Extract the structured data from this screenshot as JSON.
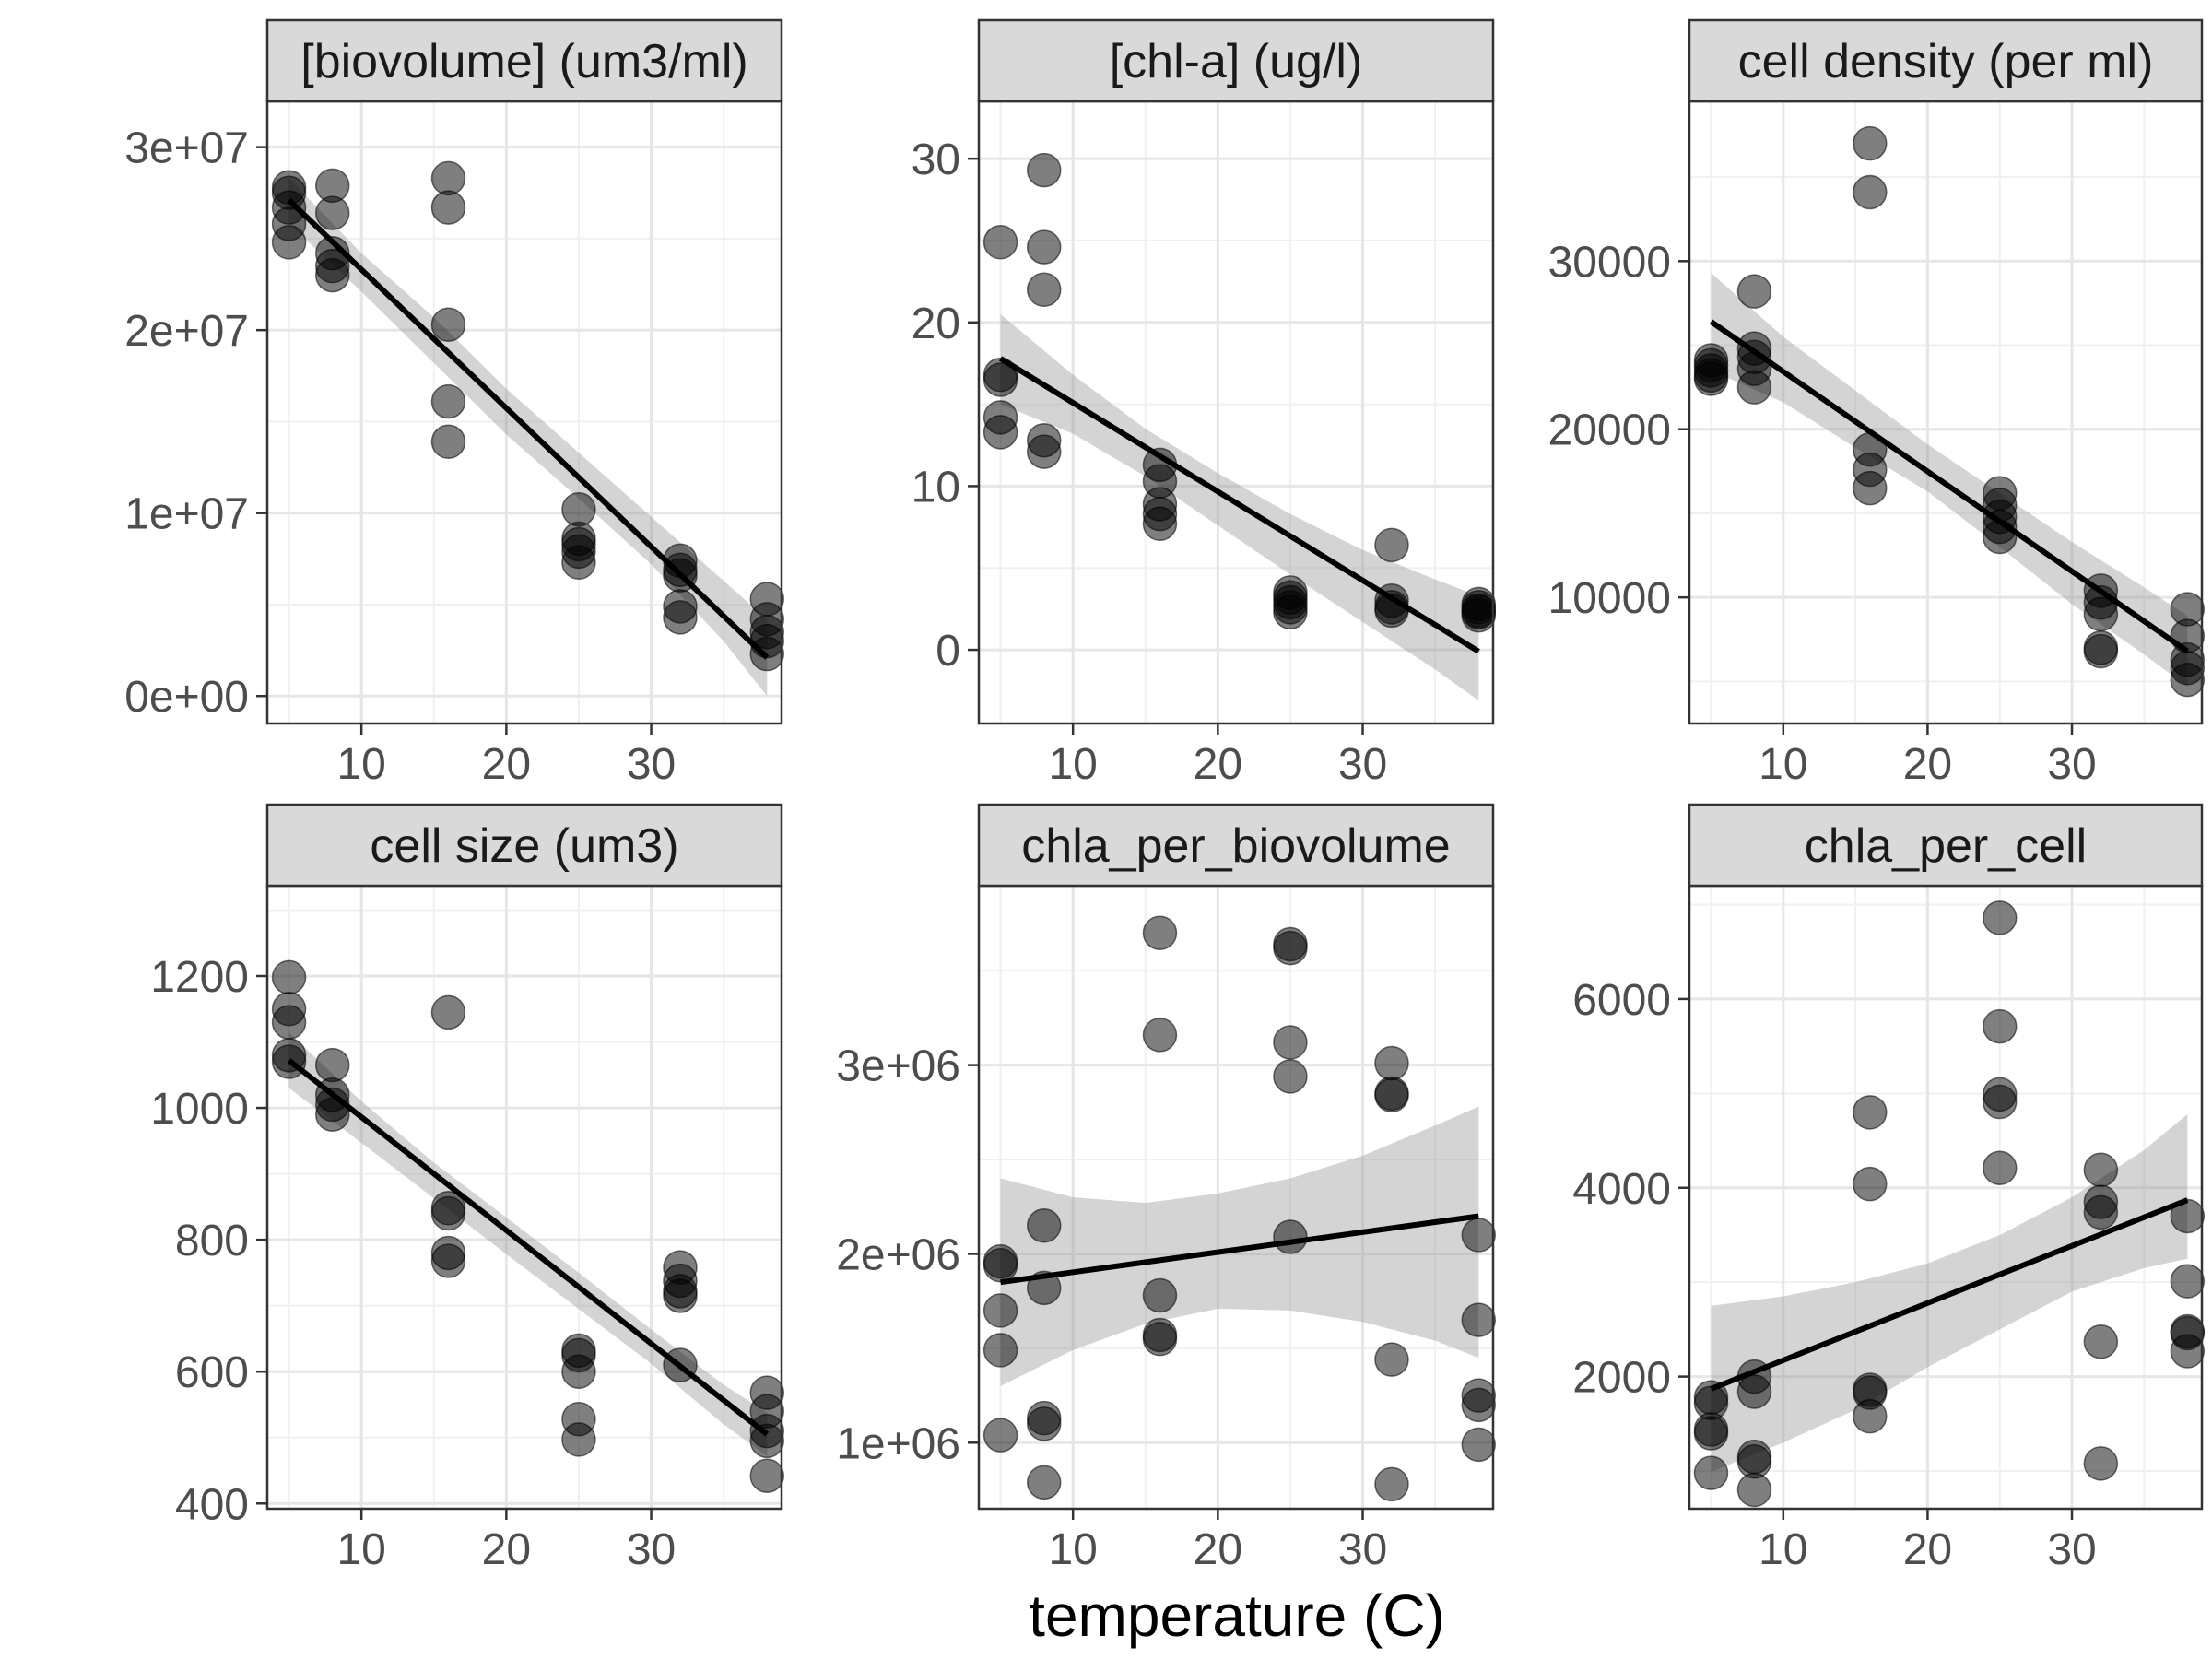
{
  "xlabel": "temperature (C)",
  "chart_data": [
    {
      "type": "scatter",
      "title": "[biovolume] (um3/ml)",
      "xlim": [
        3.5,
        39
      ],
      "ylim": [
        -1500000,
        32500000
      ],
      "xticks": [
        10,
        20,
        30
      ],
      "xtick_labels": [
        "10",
        "20",
        "30"
      ],
      "yticks": [
        0,
        10000000,
        20000000,
        30000000
      ],
      "ytick_labels": [
        "0e+00",
        "1e+07",
        "2e+07",
        "3e+07"
      ],
      "points": [
        [
          5,
          27800000
        ],
        [
          5,
          27500000
        ],
        [
          5,
          26700000
        ],
        [
          5,
          25800000
        ],
        [
          5,
          24800000
        ],
        [
          8,
          27900000
        ],
        [
          8,
          26400000
        ],
        [
          8,
          24200000
        ],
        [
          8,
          23500000
        ],
        [
          8,
          23000000
        ],
        [
          16,
          28300000
        ],
        [
          16,
          26700000
        ],
        [
          16,
          20300000
        ],
        [
          16,
          16100000
        ],
        [
          16,
          13900000
        ],
        [
          25,
          10200000
        ],
        [
          25,
          8600000
        ],
        [
          25,
          8300000
        ],
        [
          25,
          7900000
        ],
        [
          25,
          7300000
        ],
        [
          32,
          7400000
        ],
        [
          32,
          6900000
        ],
        [
          32,
          6600000
        ],
        [
          32,
          4900000
        ],
        [
          32,
          4300000
        ],
        [
          38,
          5300000
        ],
        [
          38,
          4200000
        ],
        [
          38,
          3500000
        ],
        [
          38,
          3000000
        ],
        [
          38,
          2300000
        ]
      ],
      "fit": [
        [
          5,
          27100000
        ],
        [
          38,
          2100000
        ]
      ],
      "ci_upper": [
        [
          5,
          28300000
        ],
        [
          10,
          24200000
        ],
        [
          15,
          20700000
        ],
        [
          20,
          16800000
        ],
        [
          25,
          13300000
        ],
        [
          30,
          9800000
        ],
        [
          35,
          6300000
        ],
        [
          38,
          4200000
        ]
      ],
      "ci_lower": [
        [
          5,
          25800000
        ],
        [
          10,
          22100000
        ],
        [
          15,
          18200000
        ],
        [
          20,
          14300000
        ],
        [
          25,
          10800000
        ],
        [
          30,
          7200000
        ],
        [
          35,
          3000000
        ],
        [
          38,
          0
        ]
      ]
    },
    {
      "type": "scatter",
      "title": "[chl-a] (ug/l)",
      "xlim": [
        3.5,
        39
      ],
      "ylim": [
        -4.5,
        33.5
      ],
      "xticks": [
        10,
        20,
        30
      ],
      "xtick_labels": [
        "10",
        "20",
        "30"
      ],
      "yticks": [
        0,
        10,
        20,
        30
      ],
      "ytick_labels": [
        "0",
        "10",
        "20",
        "30"
      ],
      "points": [
        [
          5,
          24.9
        ],
        [
          5,
          16.8
        ],
        [
          5,
          16.5
        ],
        [
          5,
          14.2
        ],
        [
          5,
          13.3
        ],
        [
          8,
          29.3
        ],
        [
          8,
          24.6
        ],
        [
          8,
          22.0
        ],
        [
          8,
          12.8
        ],
        [
          8,
          12.1
        ],
        [
          16,
          11.3
        ],
        [
          16,
          10.3
        ],
        [
          16,
          8.9
        ],
        [
          16,
          8.3
        ],
        [
          16,
          7.7
        ],
        [
          25,
          3.5
        ],
        [
          25,
          3.2
        ],
        [
          25,
          2.9
        ],
        [
          25,
          2.6
        ],
        [
          25,
          2.3
        ],
        [
          32,
          6.4
        ],
        [
          32,
          3.0
        ],
        [
          32,
          2.6
        ],
        [
          32,
          2.4
        ],
        [
          38,
          2.8
        ],
        [
          38,
          2.6
        ],
        [
          38,
          2.4
        ],
        [
          38,
          2.3
        ],
        [
          38,
          2.1
        ]
      ],
      "fit": [
        [
          5,
          17.8
        ],
        [
          38,
          -0.1
        ]
      ],
      "ci_upper": [
        [
          5,
          20.5
        ],
        [
          10,
          16.8
        ],
        [
          15,
          13.5
        ],
        [
          20,
          10.8
        ],
        [
          25,
          8.3
        ],
        [
          30,
          6.1
        ],
        [
          35,
          4.3
        ],
        [
          38,
          3.3
        ]
      ],
      "ci_lower": [
        [
          5,
          15.0
        ],
        [
          10,
          13.2
        ],
        [
          15,
          10.6
        ],
        [
          20,
          7.6
        ],
        [
          25,
          4.6
        ],
        [
          30,
          1.7
        ],
        [
          35,
          -1.2
        ],
        [
          38,
          -3.1
        ]
      ]
    },
    {
      "type": "scatter",
      "title": "cell density (per ml)",
      "xlim": [
        3.5,
        39
      ],
      "ylim": [
        2500,
        39500
      ],
      "xticks": [
        10,
        20,
        30
      ],
      "xtick_labels": [
        "10",
        "20",
        "30"
      ],
      "yticks": [
        10000,
        20000,
        30000
      ],
      "ytick_labels": [
        "10000",
        "20000",
        "30000"
      ],
      "points": [
        [
          5,
          24100
        ],
        [
          5,
          23800
        ],
        [
          5,
          23500
        ],
        [
          5,
          23200
        ],
        [
          5,
          23000
        ],
        [
          8,
          28200
        ],
        [
          8,
          24800
        ],
        [
          8,
          24300
        ],
        [
          8,
          23600
        ],
        [
          8,
          22500
        ],
        [
          16,
          37000
        ],
        [
          16,
          34100
        ],
        [
          16,
          18800
        ],
        [
          16,
          17600
        ],
        [
          16,
          16500
        ],
        [
          25,
          16200
        ],
        [
          25,
          15500
        ],
        [
          25,
          14800
        ],
        [
          25,
          14200
        ],
        [
          25,
          13600
        ],
        [
          32,
          10400
        ],
        [
          32,
          9700
        ],
        [
          32,
          9000
        ],
        [
          32,
          7000
        ],
        [
          32,
          6800
        ],
        [
          38,
          9300
        ],
        [
          38,
          7700
        ],
        [
          38,
          6300
        ],
        [
          38,
          5800
        ],
        [
          38,
          5100
        ]
      ],
      "fit": [
        [
          5,
          26400
        ],
        [
          38,
          6800
        ]
      ],
      "ci_upper": [
        [
          5,
          29300
        ],
        [
          10,
          25500
        ],
        [
          15,
          22300
        ],
        [
          20,
          19100
        ],
        [
          25,
          16200
        ],
        [
          30,
          13300
        ],
        [
          35,
          10600
        ],
        [
          38,
          8900
        ]
      ],
      "ci_lower": [
        [
          5,
          23500
        ],
        [
          10,
          21600
        ],
        [
          15,
          18900
        ],
        [
          20,
          16300
        ],
        [
          25,
          13000
        ],
        [
          30,
          9600
        ],
        [
          35,
          6600
        ],
        [
          38,
          4700
        ]
      ]
    },
    {
      "type": "scatter",
      "title": "cell size (um3)",
      "xlim": [
        3.5,
        39
      ],
      "ylim": [
        392,
        1337
      ],
      "xticks": [
        10,
        20,
        30
      ],
      "xtick_labels": [
        "10",
        "20",
        "30"
      ],
      "yticks": [
        400,
        600,
        800,
        1000,
        1200
      ],
      "ytick_labels": [
        "400",
        "600",
        "800",
        "1000",
        "1200"
      ],
      "points": [
        [
          5,
          1198
        ],
        [
          5,
          1150
        ],
        [
          5,
          1130
        ],
        [
          5,
          1080
        ],
        [
          5,
          1070
        ],
        [
          8,
          1065
        ],
        [
          8,
          1020
        ],
        [
          8,
          1005
        ],
        [
          8,
          990
        ],
        [
          16,
          1145
        ],
        [
          16,
          848
        ],
        [
          16,
          840
        ],
        [
          16,
          780
        ],
        [
          16,
          768
        ],
        [
          25,
          632
        ],
        [
          25,
          625
        ],
        [
          25,
          600
        ],
        [
          25,
          528
        ],
        [
          25,
          497
        ],
        [
          32,
          758
        ],
        [
          32,
          738
        ],
        [
          32,
          722
        ],
        [
          32,
          715
        ],
        [
          32,
          610
        ],
        [
          38,
          568
        ],
        [
          38,
          540
        ],
        [
          38,
          510
        ],
        [
          38,
          495
        ],
        [
          38,
          442
        ]
      ],
      "fit": [
        [
          5,
          1072
        ],
        [
          38,
          505
        ]
      ],
      "ci_upper": [
        [
          5,
          1114
        ],
        [
          10,
          1010
        ],
        [
          15,
          917
        ],
        [
          20,
          834
        ],
        [
          25,
          750
        ],
        [
          30,
          664
        ],
        [
          35,
          580
        ],
        [
          38,
          538
        ]
      ],
      "ci_lower": [
        [
          5,
          1030
        ],
        [
          10,
          947
        ],
        [
          15,
          863
        ],
        [
          20,
          778
        ],
        [
          25,
          695
        ],
        [
          30,
          612
        ],
        [
          35,
          520
        ],
        [
          38,
          472
        ]
      ]
    },
    {
      "type": "scatter",
      "title": "chla_per_biovolume",
      "xlim": [
        3.5,
        39
      ],
      "ylim": [
        650000,
        3950000
      ],
      "xticks": [
        10,
        20,
        30
      ],
      "xtick_labels": [
        "10",
        "20",
        "30"
      ],
      "yticks": [
        1000000,
        2000000,
        3000000
      ],
      "ytick_labels": [
        "1e+06",
        "2e+06",
        "3e+06"
      ],
      "points": [
        [
          5,
          1960000
        ],
        [
          5,
          1940000
        ],
        [
          5,
          1700000
        ],
        [
          5,
          1490000
        ],
        [
          5,
          1040000
        ],
        [
          8,
          2150000
        ],
        [
          8,
          1820000
        ],
        [
          8,
          1130000
        ],
        [
          8,
          1100000
        ],
        [
          8,
          790000
        ],
        [
          16,
          3700000
        ],
        [
          16,
          3160000
        ],
        [
          16,
          1780000
        ],
        [
          16,
          1570000
        ],
        [
          16,
          1550000
        ],
        [
          25,
          3640000
        ],
        [
          25,
          3620000
        ],
        [
          25,
          3120000
        ],
        [
          25,
          2940000
        ],
        [
          25,
          2090000
        ],
        [
          32,
          3010000
        ],
        [
          32,
          2850000
        ],
        [
          32,
          2840000
        ],
        [
          32,
          1440000
        ],
        [
          32,
          780000
        ],
        [
          38,
          2100000
        ],
        [
          38,
          1650000
        ],
        [
          38,
          1250000
        ],
        [
          38,
          1200000
        ],
        [
          38,
          990000
        ]
      ],
      "fit": [
        [
          5,
          1850000
        ],
        [
          38,
          2200000
        ]
      ],
      "ci_upper": [
        [
          5,
          2400000
        ],
        [
          10,
          2300000
        ],
        [
          15,
          2270000
        ],
        [
          20,
          2320000
        ],
        [
          25,
          2400000
        ],
        [
          30,
          2520000
        ],
        [
          35,
          2680000
        ],
        [
          38,
          2780000
        ]
      ],
      "ci_lower": [
        [
          5,
          1300000
        ],
        [
          10,
          1490000
        ],
        [
          15,
          1630000
        ],
        [
          20,
          1710000
        ],
        [
          25,
          1700000
        ],
        [
          30,
          1640000
        ],
        [
          35,
          1540000
        ],
        [
          38,
          1450000
        ]
      ]
    },
    {
      "type": "scatter",
      "title": "chla_per_cell",
      "xlim": [
        3.5,
        39
      ],
      "ylim": [
        600,
        7200
      ],
      "xticks": [
        10,
        20,
        30
      ],
      "xtick_labels": [
        "10",
        "20",
        "30"
      ],
      "yticks": [
        2000,
        4000,
        6000
      ],
      "ytick_labels": [
        "2000",
        "4000",
        "6000"
      ],
      "points": [
        [
          5,
          1780
        ],
        [
          5,
          1720
        ],
        [
          5,
          1440
        ],
        [
          5,
          1400
        ],
        [
          5,
          980
        ],
        [
          8,
          2000
        ],
        [
          8,
          1840
        ],
        [
          8,
          1150
        ],
        [
          8,
          1100
        ],
        [
          8,
          800
        ],
        [
          16,
          4800
        ],
        [
          16,
          4040
        ],
        [
          16,
          1860
        ],
        [
          16,
          1830
        ],
        [
          16,
          1580
        ],
        [
          25,
          6860
        ],
        [
          25,
          5710
        ],
        [
          25,
          4990
        ],
        [
          25,
          4910
        ],
        [
          25,
          4210
        ],
        [
          32,
          4190
        ],
        [
          32,
          3850
        ],
        [
          32,
          3740
        ],
        [
          32,
          2370
        ],
        [
          32,
          1080
        ],
        [
          38,
          3700
        ],
        [
          38,
          3010
        ],
        [
          38,
          2480
        ],
        [
          38,
          2460
        ],
        [
          38,
          2270
        ]
      ],
      "fit": [
        [
          5,
          1870
        ],
        [
          38,
          3870
        ]
      ],
      "ci_upper": [
        [
          5,
          2750
        ],
        [
          10,
          2850
        ],
        [
          15,
          3000
        ],
        [
          20,
          3200
        ],
        [
          25,
          3500
        ],
        [
          30,
          3900
        ],
        [
          35,
          4400
        ],
        [
          38,
          4780
        ]
      ],
      "ci_lower": [
        [
          5,
          990
        ],
        [
          10,
          1300
        ],
        [
          15,
          1650
        ],
        [
          20,
          2100
        ],
        [
          25,
          2500
        ],
        [
          30,
          2900
        ],
        [
          35,
          3150
        ],
        [
          38,
          3250
        ]
      ]
    }
  ]
}
